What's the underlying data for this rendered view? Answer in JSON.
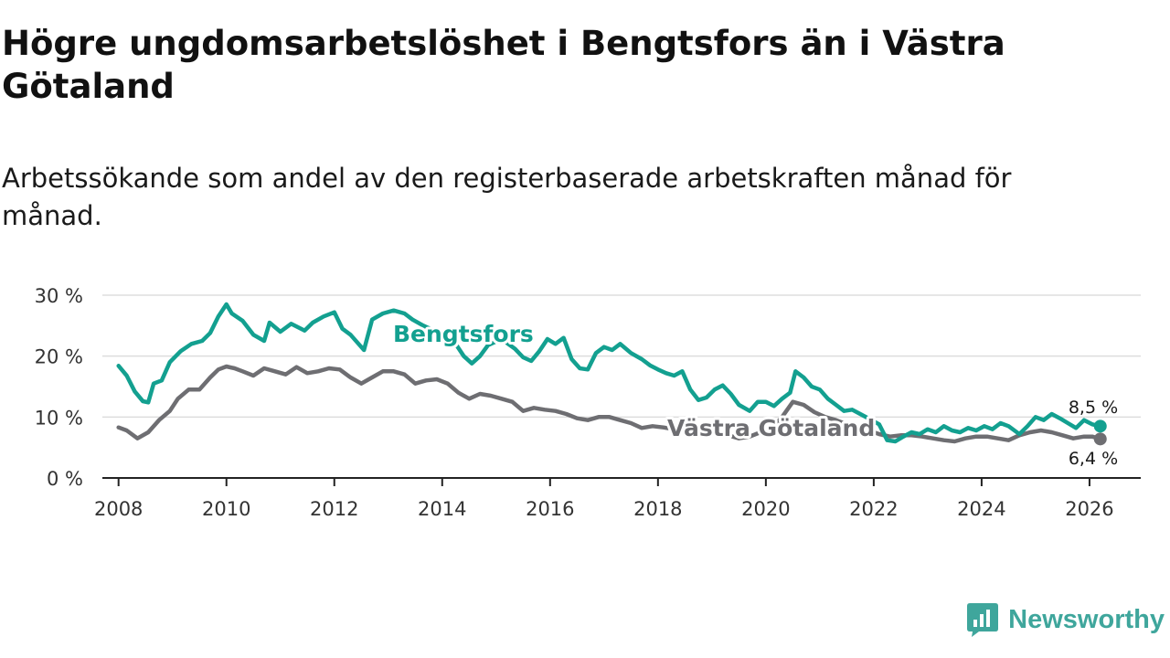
{
  "title": "Högre ungdomsarbetslöshet i Bengtsfors än i Västra Götaland",
  "subtitle": "Arbetssökande som andel av den registerbaserade arbetskraften månad för månad.",
  "brand": {
    "name": "Newsworthy",
    "icon": "newsworthy-logo-icon",
    "color": "#3fa69c"
  },
  "chart_data": {
    "type": "line",
    "title": "Högre ungdomsarbetslöshet i Bengtsfors än i Västra Götaland",
    "xlabel": "",
    "ylabel": "",
    "xlim": [
      2007.7,
      2026.95
    ],
    "ylim": [
      0,
      30
    ],
    "grid": true,
    "x_ticks": [
      {
        "value": 2008,
        "label": "2008"
      },
      {
        "value": 2010,
        "label": "2010"
      },
      {
        "value": 2012,
        "label": "2012"
      },
      {
        "value": 2014,
        "label": "2014"
      },
      {
        "value": 2016,
        "label": "2016"
      },
      {
        "value": 2018,
        "label": "2018"
      },
      {
        "value": 2020,
        "label": "2020"
      },
      {
        "value": 2022,
        "label": "2022"
      },
      {
        "value": 2024,
        "label": "2024"
      },
      {
        "value": 2026,
        "label": "2026"
      }
    ],
    "y_ticks": [
      {
        "value": 0,
        "label": "0 %"
      },
      {
        "value": 10,
        "label": "10 %"
      },
      {
        "value": 20,
        "label": "20 %"
      },
      {
        "value": 30,
        "label": "30 %"
      }
    ],
    "series": [
      {
        "name": "Bengtsfors",
        "color": "#13a090",
        "end_label": "8,5 %",
        "points": [
          [
            2008.0,
            18.4
          ],
          [
            2008.15,
            16.8
          ],
          [
            2008.3,
            14.2
          ],
          [
            2008.45,
            12.6
          ],
          [
            2008.55,
            12.4
          ],
          [
            2008.65,
            15.5
          ],
          [
            2008.8,
            16.0
          ],
          [
            2008.95,
            19.0
          ],
          [
            2009.15,
            20.8
          ],
          [
            2009.35,
            22.0
          ],
          [
            2009.55,
            22.5
          ],
          [
            2009.7,
            23.8
          ],
          [
            2009.85,
            26.5
          ],
          [
            2010.0,
            28.5
          ],
          [
            2010.1,
            27.0
          ],
          [
            2010.3,
            25.8
          ],
          [
            2010.5,
            23.5
          ],
          [
            2010.7,
            22.5
          ],
          [
            2010.8,
            25.5
          ],
          [
            2011.0,
            24.0
          ],
          [
            2011.2,
            25.3
          ],
          [
            2011.45,
            24.2
          ],
          [
            2011.6,
            25.5
          ],
          [
            2011.8,
            26.5
          ],
          [
            2012.0,
            27.2
          ],
          [
            2012.15,
            24.5
          ],
          [
            2012.3,
            23.5
          ],
          [
            2012.45,
            22.0
          ],
          [
            2012.55,
            21.0
          ],
          [
            2012.7,
            26.0
          ],
          [
            2012.9,
            27.0
          ],
          [
            2013.1,
            27.5
          ],
          [
            2013.3,
            27.0
          ],
          [
            2013.45,
            26.0
          ],
          [
            2013.65,
            25.0
          ],
          [
            2013.85,
            24.2
          ],
          [
            2014.05,
            23.2
          ],
          [
            2014.25,
            22.0
          ],
          [
            2014.4,
            20.0
          ],
          [
            2014.55,
            18.8
          ],
          [
            2014.7,
            20.0
          ],
          [
            2014.85,
            21.8
          ],
          [
            2015.1,
            22.8
          ],
          [
            2015.35,
            21.2
          ],
          [
            2015.5,
            19.8
          ],
          [
            2015.65,
            19.2
          ],
          [
            2015.8,
            20.8
          ],
          [
            2015.95,
            22.8
          ],
          [
            2016.1,
            22.0
          ],
          [
            2016.25,
            23.0
          ],
          [
            2016.4,
            19.5
          ],
          [
            2016.55,
            18.0
          ],
          [
            2016.7,
            17.8
          ],
          [
            2016.85,
            20.5
          ],
          [
            2017.0,
            21.5
          ],
          [
            2017.15,
            21.0
          ],
          [
            2017.3,
            22.0
          ],
          [
            2017.5,
            20.5
          ],
          [
            2017.7,
            19.5
          ],
          [
            2017.85,
            18.5
          ],
          [
            2018.0,
            17.8
          ],
          [
            2018.15,
            17.2
          ],
          [
            2018.3,
            16.8
          ],
          [
            2018.45,
            17.5
          ],
          [
            2018.6,
            14.5
          ],
          [
            2018.75,
            12.8
          ],
          [
            2018.9,
            13.2
          ],
          [
            2019.05,
            14.5
          ],
          [
            2019.2,
            15.2
          ],
          [
            2019.35,
            13.8
          ],
          [
            2019.5,
            12.0
          ],
          [
            2019.7,
            11.0
          ],
          [
            2019.85,
            12.5
          ],
          [
            2020.0,
            12.5
          ],
          [
            2020.15,
            11.8
          ],
          [
            2020.3,
            13.0
          ],
          [
            2020.45,
            14.0
          ],
          [
            2020.55,
            17.5
          ],
          [
            2020.7,
            16.5
          ],
          [
            2020.85,
            15.0
          ],
          [
            2021.0,
            14.5
          ],
          [
            2021.15,
            13.0
          ],
          [
            2021.3,
            12.0
          ],
          [
            2021.45,
            11.0
          ],
          [
            2021.6,
            11.2
          ],
          [
            2021.75,
            10.5
          ],
          [
            2021.9,
            9.8
          ],
          [
            2022.1,
            8.8
          ],
          [
            2022.25,
            6.2
          ],
          [
            2022.4,
            6.0
          ],
          [
            2022.55,
            6.8
          ],
          [
            2022.7,
            7.5
          ],
          [
            2022.85,
            7.2
          ],
          [
            2023.0,
            8.0
          ],
          [
            2023.15,
            7.5
          ],
          [
            2023.3,
            8.5
          ],
          [
            2023.45,
            7.8
          ],
          [
            2023.6,
            7.5
          ],
          [
            2023.75,
            8.2
          ],
          [
            2023.9,
            7.8
          ],
          [
            2024.05,
            8.5
          ],
          [
            2024.2,
            8.0
          ],
          [
            2024.35,
            9.0
          ],
          [
            2024.5,
            8.5
          ],
          [
            2024.7,
            7.2
          ],
          [
            2024.85,
            8.5
          ],
          [
            2025.0,
            10.0
          ],
          [
            2025.15,
            9.5
          ],
          [
            2025.3,
            10.5
          ],
          [
            2025.45,
            9.8
          ],
          [
            2025.6,
            9.0
          ],
          [
            2025.75,
            8.2
          ],
          [
            2025.9,
            9.5
          ],
          [
            2026.05,
            8.8
          ],
          [
            2026.2,
            8.5
          ]
        ]
      },
      {
        "name": "Västra Götaland",
        "color": "#6e6e72",
        "end_label": "6,4 %",
        "points": [
          [
            2008.0,
            8.3
          ],
          [
            2008.15,
            7.8
          ],
          [
            2008.35,
            6.5
          ],
          [
            2008.55,
            7.5
          ],
          [
            2008.75,
            9.5
          ],
          [
            2008.95,
            11.0
          ],
          [
            2009.1,
            13.0
          ],
          [
            2009.3,
            14.5
          ],
          [
            2009.5,
            14.5
          ],
          [
            2009.7,
            16.5
          ],
          [
            2009.85,
            17.8
          ],
          [
            2010.0,
            18.3
          ],
          [
            2010.15,
            18.0
          ],
          [
            2010.3,
            17.5
          ],
          [
            2010.5,
            16.8
          ],
          [
            2010.7,
            18.0
          ],
          [
            2010.9,
            17.5
          ],
          [
            2011.1,
            17.0
          ],
          [
            2011.3,
            18.2
          ],
          [
            2011.5,
            17.2
          ],
          [
            2011.7,
            17.5
          ],
          [
            2011.9,
            18.0
          ],
          [
            2012.1,
            17.8
          ],
          [
            2012.3,
            16.5
          ],
          [
            2012.5,
            15.5
          ],
          [
            2012.7,
            16.5
          ],
          [
            2012.9,
            17.5
          ],
          [
            2013.1,
            17.5
          ],
          [
            2013.3,
            17.0
          ],
          [
            2013.5,
            15.5
          ],
          [
            2013.7,
            16.0
          ],
          [
            2013.9,
            16.2
          ],
          [
            2014.1,
            15.5
          ],
          [
            2014.3,
            14.0
          ],
          [
            2014.5,
            13.0
          ],
          [
            2014.7,
            13.8
          ],
          [
            2014.9,
            13.5
          ],
          [
            2015.1,
            13.0
          ],
          [
            2015.3,
            12.5
          ],
          [
            2015.5,
            11.0
          ],
          [
            2015.7,
            11.5
          ],
          [
            2015.9,
            11.2
          ],
          [
            2016.1,
            11.0
          ],
          [
            2016.3,
            10.5
          ],
          [
            2016.5,
            9.8
          ],
          [
            2016.7,
            9.5
          ],
          [
            2016.9,
            10.0
          ],
          [
            2017.1,
            10.0
          ],
          [
            2017.3,
            9.5
          ],
          [
            2017.5,
            9.0
          ],
          [
            2017.7,
            8.2
          ],
          [
            2017.9,
            8.5
          ],
          [
            2018.1,
            8.3
          ],
          [
            2018.3,
            8.0
          ],
          [
            2018.5,
            7.8
          ],
          [
            2018.7,
            7.5
          ],
          [
            2018.9,
            7.5
          ],
          [
            2019.1,
            7.2
          ],
          [
            2019.3,
            7.0
          ],
          [
            2019.5,
            6.5
          ],
          [
            2019.7,
            6.8
          ],
          [
            2019.9,
            7.5
          ],
          [
            2020.1,
            8.0
          ],
          [
            2020.3,
            10.0
          ],
          [
            2020.5,
            12.5
          ],
          [
            2020.7,
            12.0
          ],
          [
            2020.9,
            10.8
          ],
          [
            2021.1,
            10.0
          ],
          [
            2021.3,
            9.5
          ],
          [
            2021.5,
            8.8
          ],
          [
            2021.7,
            8.5
          ],
          [
            2021.9,
            7.8
          ],
          [
            2022.1,
            7.2
          ],
          [
            2022.3,
            6.8
          ],
          [
            2022.5,
            7.0
          ],
          [
            2022.7,
            7.0
          ],
          [
            2022.9,
            6.8
          ],
          [
            2023.1,
            6.5
          ],
          [
            2023.3,
            6.2
          ],
          [
            2023.5,
            6.0
          ],
          [
            2023.7,
            6.5
          ],
          [
            2023.9,
            6.8
          ],
          [
            2024.1,
            6.8
          ],
          [
            2024.3,
            6.5
          ],
          [
            2024.5,
            6.2
          ],
          [
            2024.7,
            7.0
          ],
          [
            2024.9,
            7.5
          ],
          [
            2025.1,
            7.8
          ],
          [
            2025.3,
            7.5
          ],
          [
            2025.5,
            7.0
          ],
          [
            2025.7,
            6.5
          ],
          [
            2025.9,
            6.8
          ],
          [
            2026.05,
            6.8
          ],
          [
            2026.2,
            6.4
          ]
        ]
      }
    ]
  }
}
